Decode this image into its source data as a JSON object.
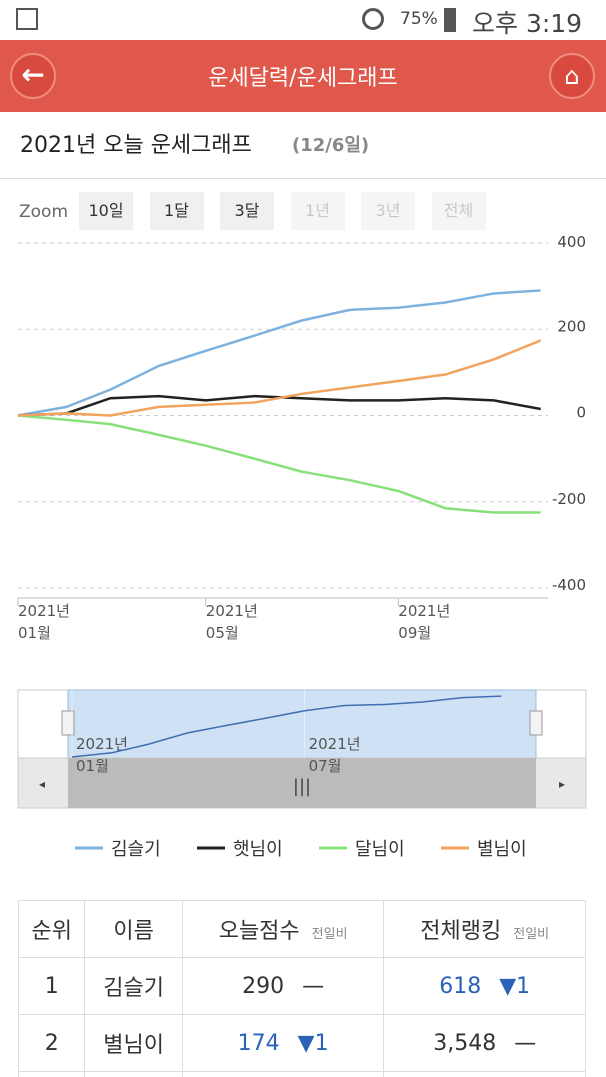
{
  "status_bar": {
    "battery": "75%",
    "time": "오후 3:19"
  },
  "header": {
    "title": "운세달력/운세그래프"
  },
  "subtitle": {
    "title": "2021년 오늘 운세그래프",
    "date": "(12/6일)"
  },
  "zoom": {
    "label": "Zoom",
    "buttons": [
      {
        "label": "10일",
        "enabled": true
      },
      {
        "label": "1달",
        "enabled": true
      },
      {
        "label": "3달",
        "enabled": true
      },
      {
        "label": "1년",
        "enabled": false
      },
      {
        "label": "3년",
        "enabled": false
      },
      {
        "label": "전체",
        "enabled": false
      }
    ]
  },
  "chart_data": {
    "type": "line",
    "x": [
      "2021-01",
      "2021-02",
      "2021-03",
      "2021-04",
      "2021-05",
      "2021-06",
      "2021-07",
      "2021-08",
      "2021-09",
      "2021-10",
      "2021-11",
      "2021-12"
    ],
    "xticks": [
      {
        "value": "2021-01",
        "label": "2021년\n01월"
      },
      {
        "value": "2021-05",
        "label": "2021년\n05월"
      },
      {
        "value": "2021-09",
        "label": "2021년\n09월"
      }
    ],
    "ylim": [
      -400,
      400
    ],
    "yticks": [
      400,
      200,
      0,
      -200,
      -400
    ],
    "grid": true,
    "y_axis_side": "right",
    "series": [
      {
        "name": "김슬기",
        "color": "#7eb2de",
        "values": [
          0,
          20,
          60,
          115,
          150,
          185,
          220,
          245,
          250,
          262,
          283,
          290
        ]
      },
      {
        "name": "햇님이",
        "color": "#222222",
        "values": [
          0,
          5,
          40,
          45,
          35,
          45,
          40,
          35,
          35,
          40,
          35,
          15
        ]
      },
      {
        "name": "달님이",
        "color": "#88e07a",
        "values": [
          0,
          -10,
          -20,
          -45,
          -70,
          -100,
          -130,
          -150,
          -175,
          -215,
          -225,
          -225
        ]
      },
      {
        "name": "별님이",
        "color": "#f2a35e",
        "values": [
          0,
          5,
          0,
          20,
          25,
          30,
          50,
          65,
          80,
          95,
          130,
          174
        ]
      }
    ]
  },
  "navigator": {
    "xticks": [
      {
        "value": "2021-01",
        "label": "2021년\n01월"
      },
      {
        "value": "2021-07",
        "label": "2021년\n07월"
      }
    ]
  },
  "table": {
    "columns": [
      {
        "label": "순위"
      },
      {
        "label": "이름"
      },
      {
        "label": "오늘점수",
        "sub": "전일비"
      },
      {
        "label": "전체랭킹",
        "sub": "전일비"
      }
    ],
    "rows": [
      {
        "rank": "1",
        "name": "김슬기",
        "score": "290",
        "score_change": "—",
        "ranking": "618",
        "ranking_change": "▼1"
      },
      {
        "rank": "2",
        "name": "별님이",
        "score": "174",
        "score_change": "▼1",
        "ranking": "3,548",
        "ranking_change": "—"
      }
    ]
  }
}
